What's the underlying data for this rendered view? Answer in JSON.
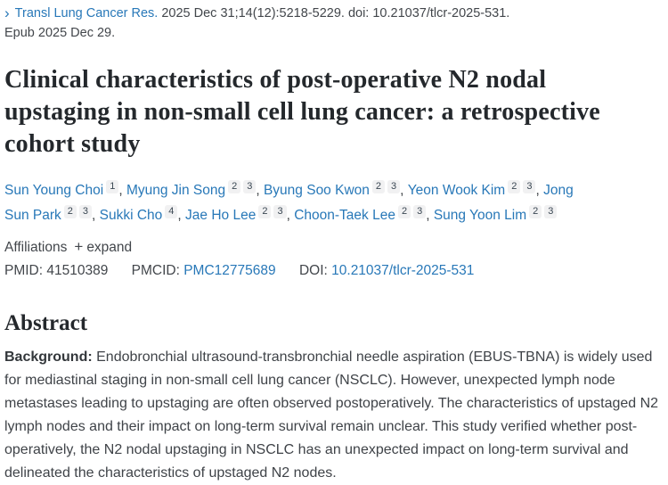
{
  "colors": {
    "link_blue": "#2878b8",
    "body_text": "#3d4145",
    "title_text": "#24282c",
    "badge_background": "#f1f1f2"
  },
  "icons": {
    "chevron_right": "›",
    "plus": "+"
  },
  "citation": {
    "journal": "Transl Lung Cancer Res.",
    "meta": " 2025 Dec 31;14(12):5218-5229. doi: 10.21037/tlcr-2025-531.",
    "epub": "Epub 2025 Dec 29."
  },
  "title": "Clinical characteristics of post-operative N2 nodal upstaging in non-small cell lung cancer: a retrospective cohort study",
  "authors": [
    {
      "name": "Sun Young Choi",
      "sups": [
        "1"
      ]
    },
    {
      "name": "Myung Jin Song",
      "sups": [
        "2",
        "3"
      ]
    },
    {
      "name": "Byung Soo Kwon",
      "sups": [
        "2",
        "3"
      ]
    },
    {
      "name": "Yeon Wook Kim",
      "sups": [
        "2",
        "3"
      ]
    },
    {
      "name": "Jong Sun Park",
      "sups": [
        "2",
        "3"
      ]
    },
    {
      "name": "Sukki Cho",
      "sups": [
        "4"
      ]
    },
    {
      "name": "Jae Ho Lee",
      "sups": [
        "2",
        "3"
      ]
    },
    {
      "name": "Choon-Taek Lee",
      "sups": [
        "2",
        "3"
      ]
    },
    {
      "name": "Sung Yoon Lim",
      "sups": [
        "2",
        "3"
      ]
    }
  ],
  "affiliations_bar": {
    "label": "Affiliations",
    "expand_label": "expand"
  },
  "identifiers": {
    "pmid_label": "PMID:",
    "pmid_value": "41510389",
    "pmcid_label": "PMCID:",
    "pmcid_value": "PMC12775689",
    "doi_label": "DOI:",
    "doi_value": "10.21037/tlcr-2025-531"
  },
  "abstract": {
    "heading": "Abstract",
    "background_label": "Background:",
    "background_text": "Endobronchial ultrasound-transbronchial needle aspiration (EBUS-TBNA) is widely used for mediastinal staging in non-small cell lung cancer (NSCLC). However, unexpected lymph node metastases leading to upstaging are often observed postoperatively. The characteristics of upstaged N2 lymph nodes and their impact on long-term survival remain unclear. This study verified whether post-operatively, the N2 nodal upstaging in NSCLC has an unexpected impact on long-term survival and delineated the characteristics of upstaged N2 nodes."
  }
}
